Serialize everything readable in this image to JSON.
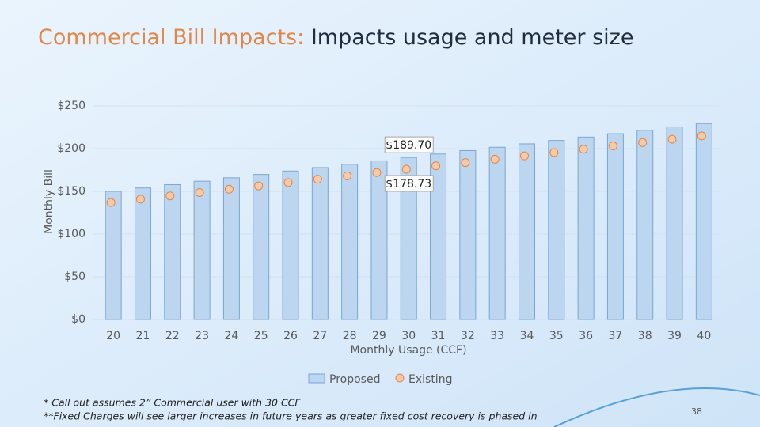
{
  "slide": {
    "title_lead": "Commercial Bill Impacts:",
    "title_rest": " Impacts usage and meter size",
    "footnotes": [
      "* Call out assumes 2” Commercial user with 30 CCF",
      "**Fixed Charges will see larger increases in future years as greater fixed cost recovery is phased in"
    ],
    "page_number": "38"
  },
  "chart_data": {
    "type": "bar",
    "xlabel": "Monthly Usage (CCF)",
    "ylabel": "Monthly Bill",
    "categories": [
      "20",
      "21",
      "22",
      "23",
      "24",
      "25",
      "26",
      "27",
      "28",
      "29",
      "30",
      "31",
      "32",
      "33",
      "34",
      "35",
      "36",
      "37",
      "38",
      "39",
      "40"
    ],
    "series": [
      {
        "name": "Proposed",
        "type": "bar",
        "color": "#bcd6f0",
        "stroke": "#7aa6d4",
        "values": [
          150.0,
          154.0,
          157.9,
          161.9,
          165.9,
          169.8,
          173.8,
          177.8,
          181.7,
          185.7,
          189.7,
          193.7,
          197.7,
          201.6,
          205.6,
          209.6,
          213.6,
          217.5,
          221.5,
          225.5,
          229.4
        ],
        "value_labels": [
          null,
          null,
          null,
          null,
          null,
          null,
          null,
          null,
          null,
          null,
          "$189.70",
          null,
          null,
          null,
          null,
          null,
          null,
          null,
          null,
          null,
          null
        ]
      },
      {
        "name": "Existing",
        "type": "scatter",
        "color": "#f8c9a6",
        "stroke": "#e0874a",
        "values": [
          139.7,
          143.6,
          147.5,
          151.4,
          155.3,
          159.2,
          163.1,
          167.0,
          170.9,
          174.8,
          178.73,
          182.6,
          186.5,
          190.4,
          194.3,
          198.2,
          202.1,
          206.0,
          209.9,
          213.8,
          217.7
        ],
        "value_labels": [
          null,
          null,
          null,
          null,
          null,
          null,
          null,
          null,
          null,
          null,
          "$178.73",
          null,
          null,
          null,
          null,
          null,
          null,
          null,
          null,
          null,
          null
        ]
      }
    ],
    "ylim": [
      0,
      250
    ],
    "yticks": [
      {
        "value": 0,
        "label": "$0"
      },
      {
        "value": 50,
        "label": "$50"
      },
      {
        "value": 100,
        "label": "$100"
      },
      {
        "value": 150,
        "label": "$150"
      },
      {
        "value": 200,
        "label": "$200"
      },
      {
        "value": 250,
        "label": "$250"
      }
    ],
    "grid": true,
    "legend": "bottom"
  }
}
